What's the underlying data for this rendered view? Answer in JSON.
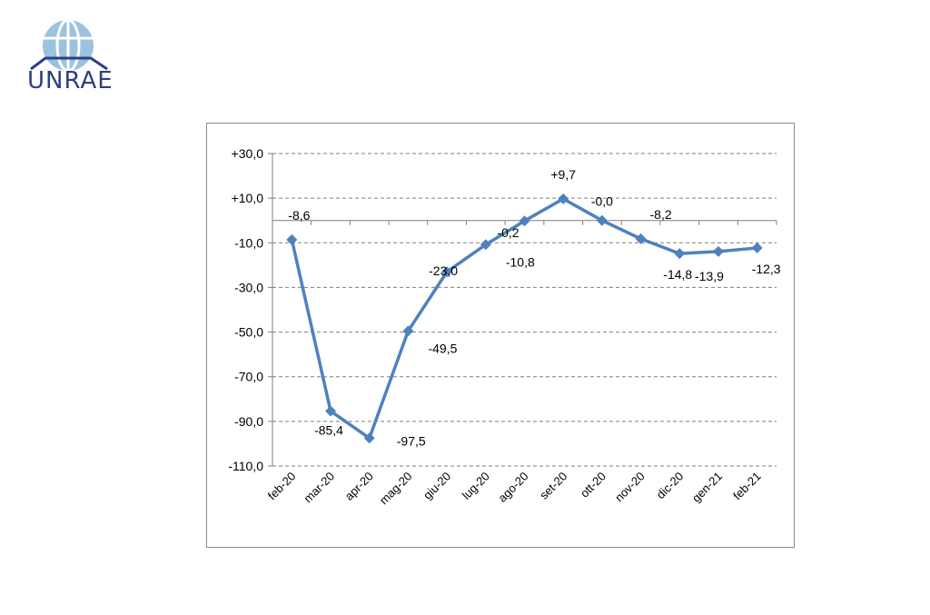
{
  "brand": {
    "name": "UNRAE",
    "logo_color": "#6b9dc0",
    "text_color": "#2c3e83"
  },
  "chart_data": {
    "type": "line",
    "title": "",
    "xlabel": "",
    "ylabel": "",
    "categories": [
      "feb-20",
      "mar-20",
      "apr-20",
      "mag-20",
      "giu-20",
      "lug-20",
      "ago-20",
      "set-20",
      "ott-20",
      "nov-20",
      "dic-20",
      "gen-21",
      "feb-21"
    ],
    "values": [
      -8.6,
      -85.4,
      -97.5,
      -49.5,
      -23.0,
      -10.8,
      -0.2,
      9.7,
      -0.0,
      -8.2,
      -14.8,
      -13.9,
      -12.3
    ],
    "data_labels": [
      "-8,6",
      "-85,4",
      "-97,5",
      "-49,5",
      "-23,0",
      "-10,8",
      "-0,2",
      "+9,7",
      "-0,0",
      "-8,2",
      "-14,8",
      "-13,9",
      "-12,3"
    ],
    "ylim": [
      -110,
      30
    ],
    "yticks": [
      30,
      10,
      -10,
      -30,
      -50,
      -70,
      -90,
      -110
    ],
    "ytick_labels": [
      "+30,0",
      "+10,0",
      "-10,0",
      "-30,0",
      "-50,0",
      "-70,0",
      "-90,0",
      "-110,0"
    ],
    "grid": true,
    "legend": "none",
    "line_color": "#4f81bd"
  }
}
